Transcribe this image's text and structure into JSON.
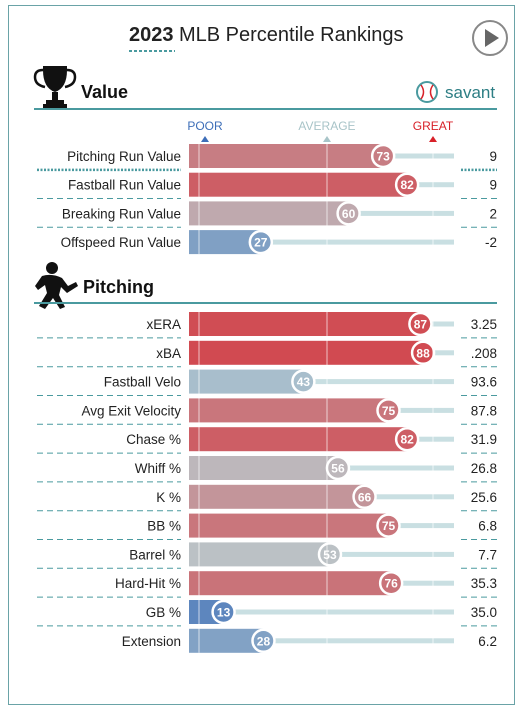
{
  "header": {
    "year": "2023",
    "title": "MLB Percentile Rankings",
    "play_icon": "play-icon"
  },
  "value_section": {
    "icon": "trophy-icon",
    "title": "Value",
    "brand": "savant",
    "brand_icon": "baseball-icon"
  },
  "pitching_section": {
    "icon": "pitcher-icon",
    "title": "Pitching"
  },
  "scale": {
    "poor": "POOR",
    "average": "AVERAGE",
    "great": "GREAT",
    "colors": {
      "poor": "#3d6eb8",
      "average": "#b3ccd0",
      "great": "#d82129"
    }
  },
  "chart_data": [
    {
      "type": "bar",
      "title": "Value",
      "categories": [
        "Pitching Run Value",
        "Fastball Run Value",
        "Breaking Run Value",
        "Offspeed Run Value"
      ],
      "series": [
        {
          "name": "Percentile",
          "values": [
            73,
            82,
            60,
            27
          ]
        }
      ],
      "stat_values": [
        "9",
        "9",
        "2",
        "-2"
      ],
      "ylim": [
        0,
        100
      ]
    },
    {
      "type": "bar",
      "title": "Pitching",
      "categories": [
        "xERA",
        "xBA",
        "Fastball Velo",
        "Avg Exit Velocity",
        "Chase %",
        "Whiff %",
        "K %",
        "BB %",
        "Barrel %",
        "Hard-Hit %",
        "GB %",
        "Extension"
      ],
      "series": [
        {
          "name": "Percentile",
          "values": [
            87,
            88,
            43,
            75,
            82,
            56,
            66,
            75,
            53,
            76,
            13,
            28
          ]
        }
      ],
      "stat_values": [
        "3.25",
        ".208",
        "93.6",
        "87.8",
        "31.9",
        "26.8",
        "25.6",
        "6.8",
        "7.7",
        "35.3",
        "35.0",
        "6.2"
      ],
      "ylim": [
        0,
        100
      ]
    }
  ]
}
